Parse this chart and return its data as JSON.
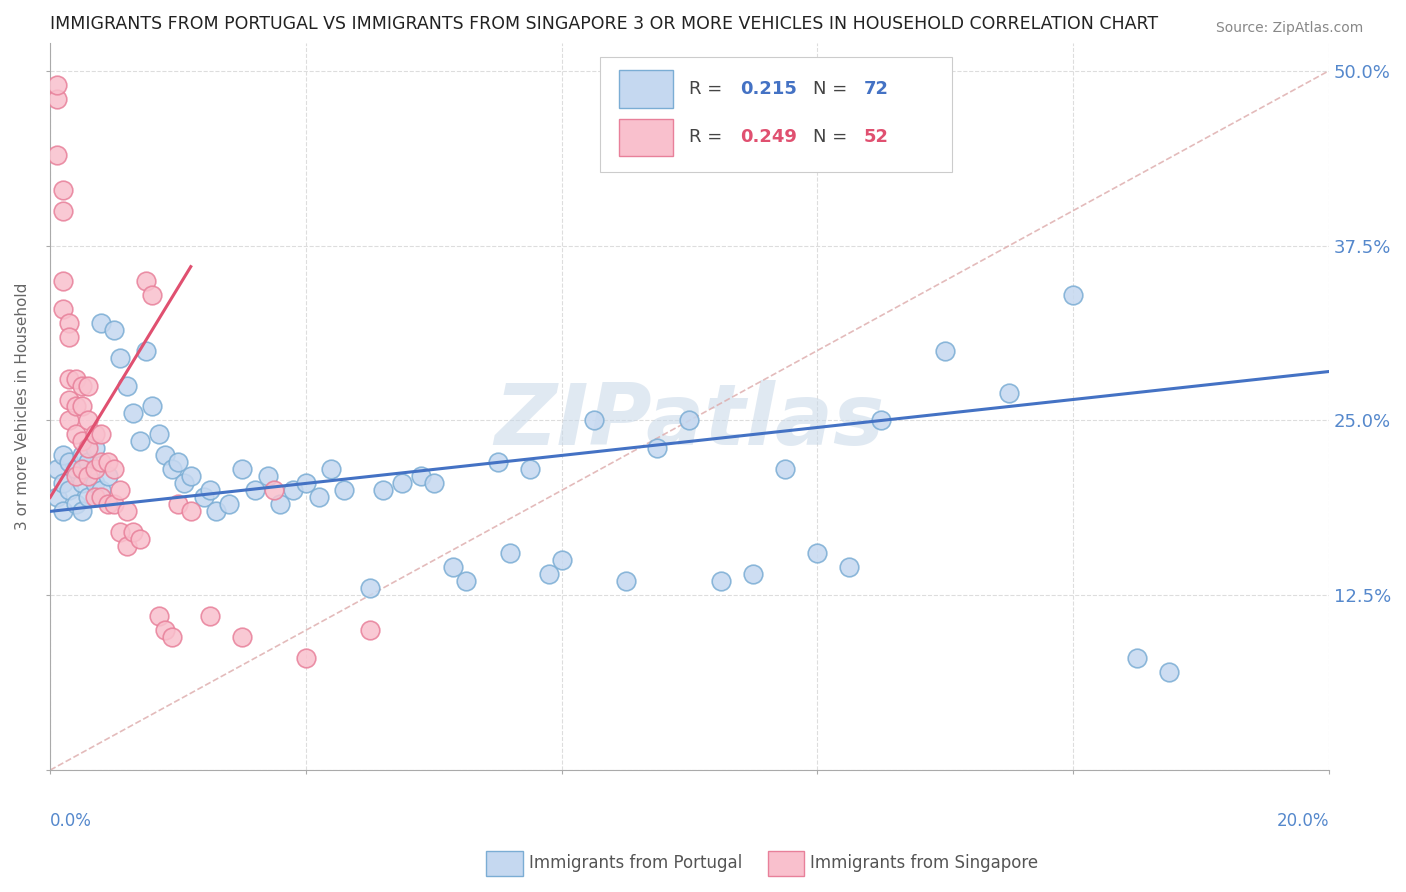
{
  "title": "IMMIGRANTS FROM PORTUGAL VS IMMIGRANTS FROM SINGAPORE 3 OR MORE VEHICLES IN HOUSEHOLD CORRELATION CHART",
  "source": "Source: ZipAtlas.com",
  "ylabel": "3 or more Vehicles in Household",
  "ytick_values": [
    0.0,
    0.125,
    0.25,
    0.375,
    0.5
  ],
  "ytick_labels_right": [
    "",
    "12.5%",
    "25.0%",
    "37.5%",
    "50.0%"
  ],
  "xlim": [
    0.0,
    0.2
  ],
  "ylim": [
    0.0,
    0.52
  ],
  "legend_R_portugal": "0.215",
  "legend_N_portugal": "72",
  "legend_R_singapore": "0.249",
  "legend_N_singapore": "52",
  "color_portugal_fill": "#c5d8f0",
  "color_portugal_edge": "#7badd4",
  "color_singapore_fill": "#f9c0cd",
  "color_singapore_edge": "#e8809a",
  "color_line_portugal": "#4472c4",
  "color_line_singapore": "#e05070",
  "color_line_ref": "#ddaaaa",
  "color_axis_labels": "#5588cc",
  "watermark": "ZIPatlas",
  "background_color": "#ffffff",
  "grid_color": "#dddddd",
  "portugal_x": [
    0.001,
    0.001,
    0.002,
    0.002,
    0.002,
    0.003,
    0.003,
    0.004,
    0.004,
    0.005,
    0.005,
    0.005,
    0.006,
    0.006,
    0.007,
    0.007,
    0.008,
    0.008,
    0.009,
    0.01,
    0.011,
    0.012,
    0.013,
    0.014,
    0.015,
    0.016,
    0.017,
    0.018,
    0.019,
    0.02,
    0.021,
    0.022,
    0.024,
    0.025,
    0.026,
    0.028,
    0.03,
    0.032,
    0.034,
    0.036,
    0.038,
    0.04,
    0.042,
    0.044,
    0.046,
    0.05,
    0.052,
    0.055,
    0.058,
    0.06,
    0.063,
    0.065,
    0.07,
    0.072,
    0.075,
    0.078,
    0.08,
    0.085,
    0.09,
    0.095,
    0.1,
    0.105,
    0.11,
    0.115,
    0.12,
    0.125,
    0.13,
    0.14,
    0.15,
    0.16,
    0.17,
    0.175
  ],
  "portugal_y": [
    0.215,
    0.195,
    0.225,
    0.205,
    0.185,
    0.22,
    0.2,
    0.215,
    0.19,
    0.225,
    0.205,
    0.185,
    0.22,
    0.195,
    0.23,
    0.205,
    0.32,
    0.2,
    0.21,
    0.315,
    0.295,
    0.275,
    0.255,
    0.235,
    0.3,
    0.26,
    0.24,
    0.225,
    0.215,
    0.22,
    0.205,
    0.21,
    0.195,
    0.2,
    0.185,
    0.19,
    0.215,
    0.2,
    0.21,
    0.19,
    0.2,
    0.205,
    0.195,
    0.215,
    0.2,
    0.13,
    0.2,
    0.205,
    0.21,
    0.205,
    0.145,
    0.135,
    0.22,
    0.155,
    0.215,
    0.14,
    0.15,
    0.25,
    0.135,
    0.23,
    0.25,
    0.135,
    0.14,
    0.215,
    0.155,
    0.145,
    0.25,
    0.3,
    0.27,
    0.34,
    0.08,
    0.07
  ],
  "singapore_x": [
    0.001,
    0.001,
    0.001,
    0.002,
    0.002,
    0.002,
    0.002,
    0.003,
    0.003,
    0.003,
    0.003,
    0.003,
    0.004,
    0.004,
    0.004,
    0.004,
    0.005,
    0.005,
    0.005,
    0.005,
    0.006,
    0.006,
    0.006,
    0.006,
    0.007,
    0.007,
    0.007,
    0.008,
    0.008,
    0.008,
    0.009,
    0.009,
    0.01,
    0.01,
    0.011,
    0.011,
    0.012,
    0.012,
    0.013,
    0.014,
    0.015,
    0.016,
    0.017,
    0.018,
    0.019,
    0.02,
    0.022,
    0.025,
    0.03,
    0.035,
    0.04,
    0.05
  ],
  "singapore_y": [
    0.48,
    0.49,
    0.44,
    0.415,
    0.4,
    0.35,
    0.33,
    0.32,
    0.31,
    0.28,
    0.265,
    0.25,
    0.28,
    0.26,
    0.24,
    0.21,
    0.275,
    0.26,
    0.235,
    0.215,
    0.275,
    0.25,
    0.23,
    0.21,
    0.24,
    0.215,
    0.195,
    0.24,
    0.22,
    0.195,
    0.22,
    0.19,
    0.215,
    0.19,
    0.2,
    0.17,
    0.185,
    0.16,
    0.17,
    0.165,
    0.35,
    0.34,
    0.11,
    0.1,
    0.095,
    0.19,
    0.185,
    0.11,
    0.095,
    0.2,
    0.08,
    0.1
  ],
  "ref_line_x": [
    0.0,
    0.2
  ],
  "ref_line_y": [
    0.0,
    0.5
  ],
  "portugal_line_x": [
    0.0,
    0.2
  ],
  "portugal_line_y": [
    0.185,
    0.285
  ],
  "singapore_line_x": [
    0.0,
    0.022
  ],
  "singapore_line_y": [
    0.195,
    0.36
  ]
}
